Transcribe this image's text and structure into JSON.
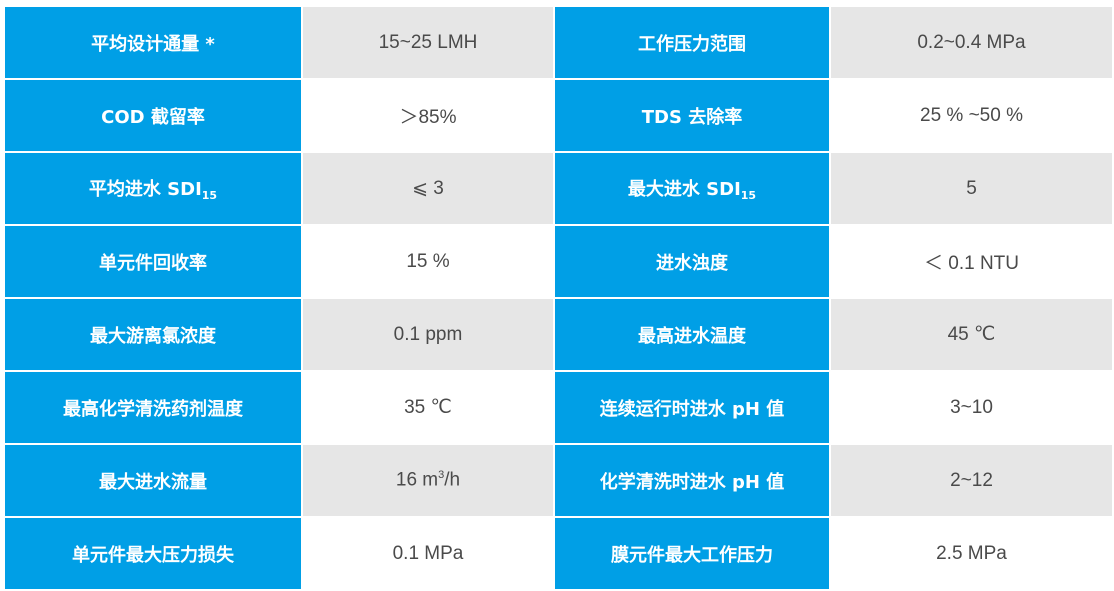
{
  "colors": {
    "header": "#009fe6",
    "stripe": "#e6e6e6"
  },
  "rows": [
    {
      "k1": "平均设计通量 *",
      "v1": "15~25 LMH",
      "k2": "工作压力范围",
      "v2": "0.2~0.4 MPa"
    },
    {
      "k1": "COD 截留率",
      "v1": "＞85%",
      "k2": "TDS 去除率",
      "v2": "25 % ~50 %"
    },
    {
      "k1": "平均进水 SDI",
      "k1sub": "15",
      "v1": "⩽ 3",
      "k2": "最大进水 SDI",
      "k2sub": "15",
      "v2": "5"
    },
    {
      "k1": "单元件回收率",
      "v1": "15 %",
      "k2": "进水浊度",
      "v2": "＜ 0.1 NTU"
    },
    {
      "k1": "最大游离氯浓度",
      "v1": "0.1 ppm",
      "k2": "最高进水温度",
      "v2": "45 ℃"
    },
    {
      "k1": "最高化学清洗药剂温度",
      "v1": "35 ℃",
      "k2": "连续运行时进水 pH 值",
      "v2": "3~10"
    },
    {
      "k1": "最大进水流量",
      "v1": "16 m",
      "v1sup": "3",
      "v1tail": "/h",
      "k2": "化学清洗时进水 pH 值",
      "v2": "2~12"
    },
    {
      "k1": "单元件最大压力损失",
      "v1": "0.1 MPa",
      "k2": "膜元件最大工作压力",
      "v2": "2.5 MPa"
    }
  ]
}
